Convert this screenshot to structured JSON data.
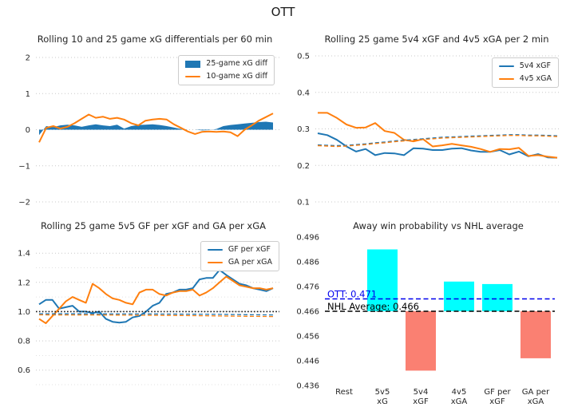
{
  "figure_title": "OTT",
  "colors": {
    "line_blue": "#1f77b4",
    "line_orange": "#ff7f0e",
    "bar_above": "#00ffff",
    "bar_below": "#fa8072",
    "team_line": "#0000ee",
    "nhl_line": "#000000",
    "grid": "#c8c8c8"
  },
  "chart_data": [
    {
      "id": "xg-differentials",
      "type": "line",
      "title": "Rolling 10 and 25 game xG differentials per 60 min",
      "ylim": [
        -2,
        2
      ],
      "ytick_values": [
        2,
        1,
        0,
        -1,
        -2
      ],
      "ytick_labels": [
        "2",
        "1",
        "0",
        "−1",
        "−2"
      ],
      "grid": "dotted",
      "legend_position": "upper right",
      "series": [
        {
          "name": "25-game xG diff",
          "style": "area",
          "color": "#1f77b4",
          "in_legend": true,
          "values": [
            -0.15,
            0.1,
            0.07,
            0.12,
            0.14,
            0.12,
            0.08,
            0.12,
            0.15,
            0.12,
            0.1,
            0.14,
            0.03,
            0.1,
            0.13,
            0.14,
            0.15,
            0.13,
            0.1,
            0.06,
            0.02,
            0.0,
            0.0,
            -0.02,
            -0.01,
            0.02,
            0.1,
            0.13,
            0.15,
            0.17,
            0.19,
            0.21,
            0.22,
            0.2
          ]
        },
        {
          "name": "10-game xG diff",
          "style": "line",
          "color": "#ff7f0e",
          "in_legend": true,
          "values": [
            -0.35,
            0.05,
            0.1,
            0.03,
            0.08,
            0.18,
            0.3,
            0.42,
            0.33,
            0.36,
            0.3,
            0.33,
            0.28,
            0.18,
            0.12,
            0.25,
            0.28,
            0.3,
            0.28,
            0.15,
            0.05,
            -0.05,
            -0.12,
            -0.06,
            -0.05,
            -0.06,
            -0.05,
            -0.07,
            -0.18,
            0.0,
            0.12,
            0.25,
            0.35,
            0.45
          ]
        }
      ]
    },
    {
      "id": "special-teams",
      "type": "line",
      "title": "Rolling 25 game 5v4 xGF and 4v5 xGA per 2 min",
      "ylim": [
        0.1,
        0.5
      ],
      "ytick_values": [
        0.5,
        0.4,
        0.3,
        0.2,
        0.1
      ],
      "ytick_labels": [
        "0.5",
        "0.4",
        "0.3",
        "0.2",
        "0.1"
      ],
      "grid": "dotted",
      "legend_position": "upper right",
      "series": [
        {
          "name": "5v4 xGF",
          "style": "line",
          "color": "#1f77b4",
          "in_legend": true,
          "values": [
            0.288,
            0.283,
            0.27,
            0.252,
            0.238,
            0.245,
            0.228,
            0.234,
            0.233,
            0.228,
            0.247,
            0.246,
            0.242,
            0.242,
            0.246,
            0.247,
            0.241,
            0.237,
            0.237,
            0.242,
            0.23,
            0.238,
            0.225,
            0.231,
            0.222,
            0.221
          ]
        },
        {
          "name": "4v5 xGA",
          "style": "line",
          "color": "#ff7f0e",
          "in_legend": true,
          "values": [
            0.344,
            0.344,
            0.33,
            0.312,
            0.303,
            0.304,
            0.316,
            0.294,
            0.289,
            0.27,
            0.266,
            0.272,
            0.252,
            0.255,
            0.259,
            0.255,
            0.251,
            0.245,
            0.237,
            0.245,
            0.244,
            0.248,
            0.226,
            0.228,
            0.224,
            0.221
          ]
        },
        {
          "name": "",
          "role": "reference",
          "style": "dashed",
          "color": "#1f77b4",
          "width": 1.4,
          "in_legend": false,
          "values": [
            0.256,
            0.255,
            0.254,
            0.255,
            0.257,
            0.259,
            0.262,
            0.264,
            0.267,
            0.269,
            0.271,
            0.273,
            0.275,
            0.277,
            0.278,
            0.279,
            0.28,
            0.281,
            0.282,
            0.283,
            0.284,
            0.284,
            0.283,
            0.283,
            0.282,
            0.281
          ]
        },
        {
          "name": "",
          "role": "reference",
          "style": "dashed",
          "color": "#ff7f0e",
          "width": 1.4,
          "in_legend": false,
          "values": [
            0.254,
            0.253,
            0.252,
            0.253,
            0.255,
            0.257,
            0.26,
            0.262,
            0.265,
            0.267,
            0.269,
            0.271,
            0.273,
            0.275,
            0.276,
            0.277,
            0.278,
            0.279,
            0.28,
            0.281,
            0.282,
            0.282,
            0.281,
            0.281,
            0.28,
            0.279
          ]
        }
      ]
    },
    {
      "id": "goals-per-expected",
      "type": "line",
      "title": "Rolling 25 game 5v5 GF per xGF and GA per xGA",
      "ylim": [
        0.5,
        1.45
      ],
      "ytick_values": [
        1.4,
        1.2,
        1.0,
        0.8,
        0.6
      ],
      "ytick_labels": [
        "1.4",
        "1.2",
        "1.0",
        "0.8",
        "0.6"
      ],
      "minor_ticks": [
        1.3,
        1.1,
        0.9,
        0.7,
        0.5
      ],
      "grid": "dotted",
      "legend_position": "upper right",
      "series": [
        {
          "name": "GF per xGF",
          "style": "line",
          "color": "#1f77b4",
          "in_legend": true,
          "values": [
            1.05,
            1.08,
            1.08,
            1.02,
            1.03,
            1.04,
            1.0,
            1.0,
            0.99,
            1.0,
            0.95,
            0.93,
            0.925,
            0.93,
            0.96,
            0.97,
            1.0,
            1.04,
            1.06,
            1.12,
            1.13,
            1.15,
            1.15,
            1.16,
            1.22,
            1.23,
            1.23,
            1.285,
            1.25,
            1.22,
            1.19,
            1.18,
            1.16,
            1.15,
            1.14,
            1.16
          ]
        },
        {
          "name": "GA per xGA",
          "style": "line",
          "color": "#ff7f0e",
          "in_legend": true,
          "values": [
            0.95,
            0.92,
            0.97,
            1.02,
            1.07,
            1.1,
            1.08,
            1.06,
            1.19,
            1.16,
            1.12,
            1.09,
            1.08,
            1.06,
            1.05,
            1.13,
            1.15,
            1.15,
            1.12,
            1.11,
            1.13,
            1.14,
            1.14,
            1.15,
            1.11,
            1.13,
            1.16,
            1.2,
            1.24,
            1.21,
            1.18,
            1.17,
            1.16,
            1.16,
            1.15,
            1.16
          ]
        },
        {
          "name": "",
          "role": "reference",
          "style": "dotted",
          "color": "#1a1a1a",
          "width": 1.6,
          "full_width": true,
          "in_legend": false,
          "values": [
            1.0,
            1.0
          ]
        },
        {
          "name": "",
          "role": "reference",
          "style": "dashed",
          "color": "#1f77b4",
          "width": 1.3,
          "in_legend": false,
          "values": [
            0.985,
            0.985,
            0.985,
            0.984,
            0.984,
            0.983,
            0.982,
            0.981,
            0.979,
            0.977
          ]
        },
        {
          "name": "",
          "role": "reference",
          "style": "dashed",
          "color": "#ff7f0e",
          "width": 1.3,
          "in_legend": false,
          "values": [
            0.978,
            0.977,
            0.977,
            0.976,
            0.975,
            0.974,
            0.972,
            0.97,
            0.968,
            0.966
          ]
        }
      ]
    },
    {
      "id": "win-probability",
      "type": "bar",
      "title": "Away win probability vs NHL average",
      "ylim": [
        0.436,
        0.496
      ],
      "ytick_values": [
        0.496,
        0.486,
        0.476,
        0.466,
        0.456,
        0.446,
        0.436
      ],
      "ytick_labels": [
        "0.496",
        "0.486",
        "0.476",
        "0.466",
        "0.456",
        "0.446",
        "0.436"
      ],
      "grid": "none",
      "categories": [
        [
          "Rest"
        ],
        [
          "5v5",
          "xG"
        ],
        [
          "5v4",
          "xGF"
        ],
        [
          "4v5",
          "xGA"
        ],
        [
          "GF per",
          "xGF"
        ],
        [
          "GA per",
          "xGA"
        ]
      ],
      "values": [
        0.466,
        0.491,
        0.442,
        0.478,
        0.477,
        0.447
      ],
      "baseline": 0.466,
      "bar_color_above": "#00ffff",
      "bar_color_below": "#fa8072",
      "reference_lines": [
        {
          "id": "ott",
          "label": "OTT: 0.471",
          "value": 0.471,
          "color": "#0000ee",
          "style": "dashed"
        },
        {
          "id": "nhl-average",
          "label": "NHL Average: 0.466",
          "value": 0.466,
          "color": "#000000",
          "style": "dashed"
        }
      ]
    }
  ]
}
